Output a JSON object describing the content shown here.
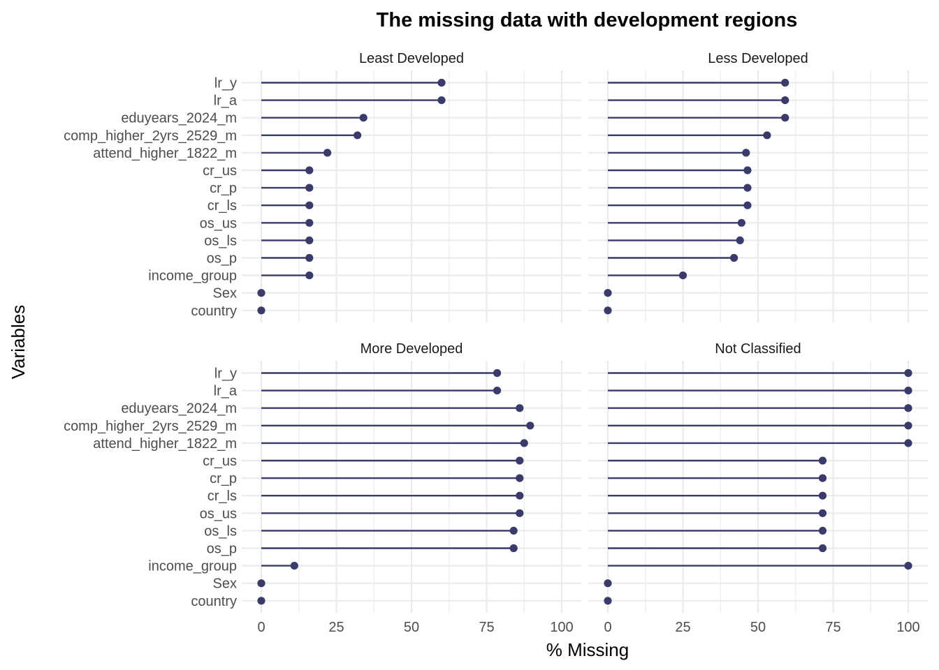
{
  "chart_data": {
    "type": "lollipop",
    "title": "The missing data with development regions",
    "xlabel": "% Missing",
    "ylabel": "Variables",
    "xlim": [
      0,
      100
    ],
    "x_ticks": [
      "0",
      "25",
      "50",
      "75",
      "100"
    ],
    "grid": true,
    "variables": [
      "lr_y",
      "lr_a",
      "eduyears_2024_m",
      "comp_higher_2yrs_2529_m",
      "attend_higher_1822_m",
      "cr_us",
      "cr_p",
      "cr_ls",
      "os_us",
      "os_ls",
      "os_p",
      "income_group",
      "Sex",
      "country"
    ],
    "panels": [
      {
        "name": "Least Developed",
        "values": [
          60,
          60,
          34,
          32,
          22,
          16,
          16,
          16,
          16,
          16,
          16,
          16,
          0,
          0
        ]
      },
      {
        "name": "Less Developed",
        "values": [
          59,
          59,
          59,
          53,
          46,
          46.5,
          46.5,
          46.5,
          44.5,
          44,
          42,
          25,
          0,
          0
        ]
      },
      {
        "name": "More Developed",
        "values": [
          78.5,
          78.5,
          86,
          89.5,
          87.5,
          86,
          86,
          86,
          86,
          84,
          84,
          11,
          0,
          0
        ]
      },
      {
        "name": "Not Classified",
        "values": [
          100,
          100,
          100,
          100,
          100,
          71.5,
          71.5,
          71.5,
          71.5,
          71.5,
          71.5,
          100,
          0,
          0
        ]
      }
    ],
    "colors": {
      "series": "#3b3b6b"
    }
  }
}
